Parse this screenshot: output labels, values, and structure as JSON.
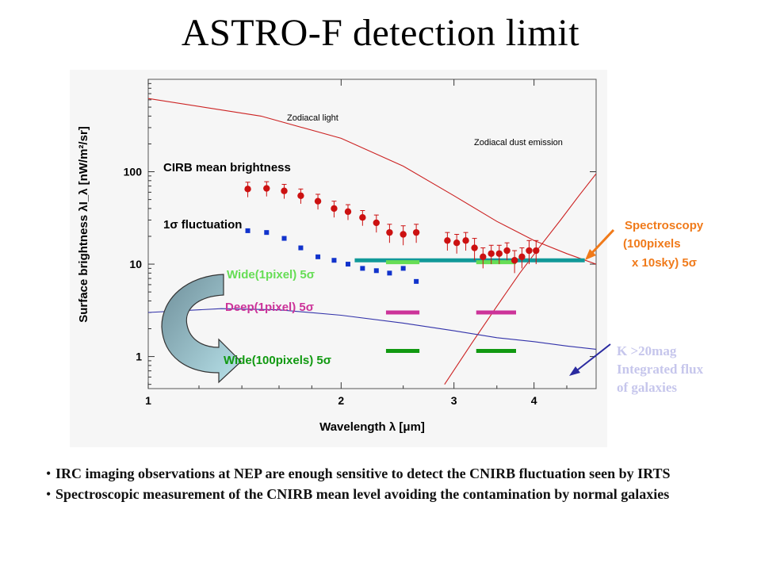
{
  "slide": {
    "title": "ASTRO-F detection limit",
    "bullets": [
      "IRC imaging observations at NEP are enough sensitive to detect the CNIRB fluctuation seen by IRTS",
      "Spectroscopic measurement of the CNIRB mean level avoiding the contamination by normal galaxies"
    ]
  },
  "chart_data": {
    "type": "scatter",
    "xlabel": "Wavelength λ [μm]",
    "ylabel": "Surface brightness λI_λ [nW/m²/sr]",
    "xscale": "log",
    "yscale": "log",
    "xlim": [
      1,
      5
    ],
    "ylim": [
      0.45,
      1000
    ],
    "xticks": [
      "1",
      "2",
      "3",
      "4"
    ],
    "yticks": [
      "1",
      "10",
      "100"
    ],
    "grid": false,
    "series": [
      {
        "name": "CIRB mean brightness",
        "kind": "points-with-error",
        "color": "#cc1111",
        "x": [
          1.43,
          1.53,
          1.63,
          1.73,
          1.84,
          1.95,
          2.05,
          2.16,
          2.27,
          2.38,
          2.5,
          2.62,
          2.93,
          3.03,
          3.13,
          3.23,
          3.33,
          3.43,
          3.53,
          3.63,
          3.73,
          3.83,
          3.93,
          4.03
        ],
        "y": [
          65,
          66,
          62,
          55,
          48,
          40,
          37,
          32,
          28,
          22,
          21,
          22,
          18,
          17,
          18,
          15,
          12,
          13,
          13,
          14,
          11,
          12,
          14,
          14
        ],
        "err": [
          12,
          12,
          11,
          10,
          9,
          8,
          7,
          6,
          6,
          5,
          5,
          5,
          4,
          4,
          4,
          4,
          3,
          3,
          3,
          3,
          3,
          3,
          4,
          4
        ]
      },
      {
        "name": "1σ fluctuation",
        "kind": "points",
        "color": "#1133cc",
        "x": [
          1.43,
          1.53,
          1.63,
          1.73,
          1.84,
          1.95,
          2.05,
          2.16,
          2.27,
          2.38,
          2.5,
          2.62
        ],
        "y": [
          23,
          22,
          19,
          15,
          12,
          11,
          10,
          9,
          8.5,
          8,
          9,
          6.5
        ]
      },
      {
        "name": "Zodiacal light",
        "kind": "curve",
        "color": "#cc2222",
        "x": [
          1,
          1.5,
          2,
          2.5,
          3,
          3.5,
          4,
          4.5,
          5
        ],
        "y": [
          620,
          400,
          230,
          115,
          55,
          29,
          18,
          13,
          10
        ]
      },
      {
        "name": "Zodiacal dust emission",
        "kind": "curve",
        "color": "#cc2222",
        "x": [
          2.9,
          3.2,
          3.5,
          3.8,
          4.1,
          4.4,
          4.7,
          5.0
        ],
        "y": [
          0.5,
          1.4,
          3.5,
          8,
          16,
          30,
          55,
          95
        ]
      },
      {
        "name": "K >20mag Integrated flux of galaxies",
        "kind": "curve",
        "color": "#3333aa",
        "x": [
          1,
          1.3,
          1.6,
          2.0,
          2.5,
          3.0,
          3.5,
          4.0,
          4.5,
          5.0
        ],
        "y": [
          3.0,
          3.3,
          3.2,
          2.8,
          2.3,
          1.9,
          1.6,
          1.45,
          1.3,
          1.2
        ]
      }
    ],
    "limits": [
      {
        "name": "Spectroscopy (100pixels x 10sky) 5σ",
        "color": "#119999",
        "x": [
          2.1,
          4.8
        ],
        "y": 11
      },
      {
        "name": "Wide(1pixel) 5σ",
        "color": "#66dd55",
        "segments": [
          [
            2.35,
            2.65
          ],
          [
            3.25,
            3.75
          ]
        ],
        "y": 10.5
      },
      {
        "name": "Deep(1pixel) 5σ",
        "color": "#cc3399",
        "segments": [
          [
            2.35,
            2.65
          ],
          [
            3.25,
            3.75
          ]
        ],
        "y": 3.0
      },
      {
        "name": "Wide(100pixels) 5σ",
        "color": "#119911",
        "segments": [
          [
            2.35,
            2.65
          ],
          [
            3.25,
            3.75
          ]
        ],
        "y": 1.15
      }
    ],
    "annotations": {
      "zodiacal_light": "Zodiacal light",
      "zodiacal_dust": "Zodiacal dust emission",
      "cirb_mean": "CIRB mean brightness",
      "fluctuation": "1σ fluctuation",
      "wide1": "Wide(1pixel) 5σ",
      "deep1": "Deep(1pixel) 5σ",
      "wide100": "Wide(100pixels) 5σ",
      "spectro": [
        "Spectroscopy",
        "(100pixels",
        "x 10sky) 5σ"
      ],
      "kmag": [
        "K >20mag",
        "Integrated flux",
        "of galaxies"
      ]
    }
  }
}
